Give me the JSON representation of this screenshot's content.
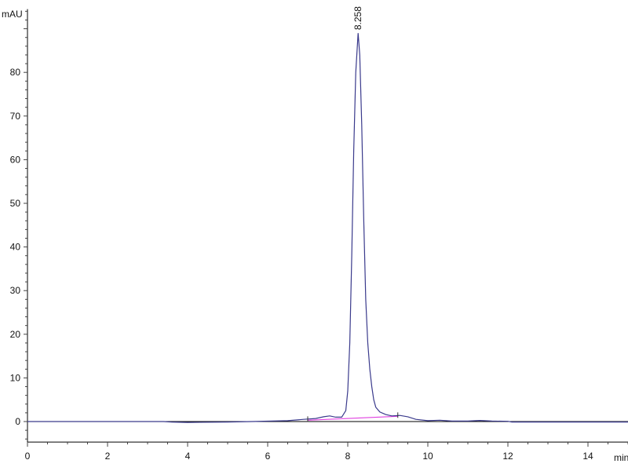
{
  "chart_data": {
    "type": "line",
    "title": "",
    "xlabel": "min",
    "ylabel": "mAU",
    "xlim": [
      0,
      15
    ],
    "ylim": [
      -4.7,
      94.5
    ],
    "x_ticks": [
      0,
      2,
      4,
      6,
      8,
      10,
      12,
      14
    ],
    "y_ticks": [
      0,
      10,
      20,
      30,
      40,
      50,
      60,
      70,
      80
    ],
    "grid": false,
    "legend": "none",
    "colors": {
      "trace": "#3a3a8c",
      "baseline": "#e040e0",
      "axis": "#000000"
    },
    "series": [
      {
        "points": [
          [
            0,
            0
          ],
          [
            3.4,
            0
          ],
          [
            3.6,
            -0.1
          ],
          [
            4,
            -0.2
          ],
          [
            5,
            -0.1
          ],
          [
            5.6,
            0
          ],
          [
            6.5,
            0.2
          ],
          [
            6.9,
            0.5
          ],
          [
            7.2,
            0.7
          ],
          [
            7.4,
            1.1
          ],
          [
            7.55,
            1.3
          ],
          [
            7.7,
            1.0
          ],
          [
            7.85,
            1.0
          ],
          [
            7.95,
            2.5
          ],
          [
            8.0,
            7
          ],
          [
            8.05,
            18
          ],
          [
            8.1,
            38
          ],
          [
            8.15,
            62
          ],
          [
            8.2,
            80
          ],
          [
            8.258,
            89
          ],
          [
            8.3,
            84
          ],
          [
            8.35,
            68
          ],
          [
            8.4,
            46
          ],
          [
            8.45,
            28
          ],
          [
            8.5,
            18
          ],
          [
            8.55,
            12
          ],
          [
            8.6,
            8
          ],
          [
            8.65,
            5
          ],
          [
            8.7,
            3.3
          ],
          [
            8.8,
            2.2
          ],
          [
            8.95,
            1.6
          ],
          [
            9.1,
            1.3
          ],
          [
            9.3,
            1.4
          ],
          [
            9.5,
            1.1
          ],
          [
            9.7,
            0.5
          ],
          [
            10,
            0.2
          ],
          [
            10.3,
            0.3
          ],
          [
            10.6,
            0.1
          ],
          [
            11,
            0.1
          ],
          [
            11.3,
            0.25
          ],
          [
            11.6,
            0.1
          ],
          [
            12,
            0.05
          ],
          [
            12.1,
            -0.1
          ],
          [
            13,
            -0.1
          ],
          [
            15,
            -0.1
          ]
        ]
      }
    ],
    "integration_baseline": [
      [
        7.0,
        0.3
      ],
      [
        9.25,
        1.2
      ]
    ],
    "annotations": [
      {
        "x": 8.258,
        "y": 89,
        "text": "8.258"
      }
    ]
  }
}
